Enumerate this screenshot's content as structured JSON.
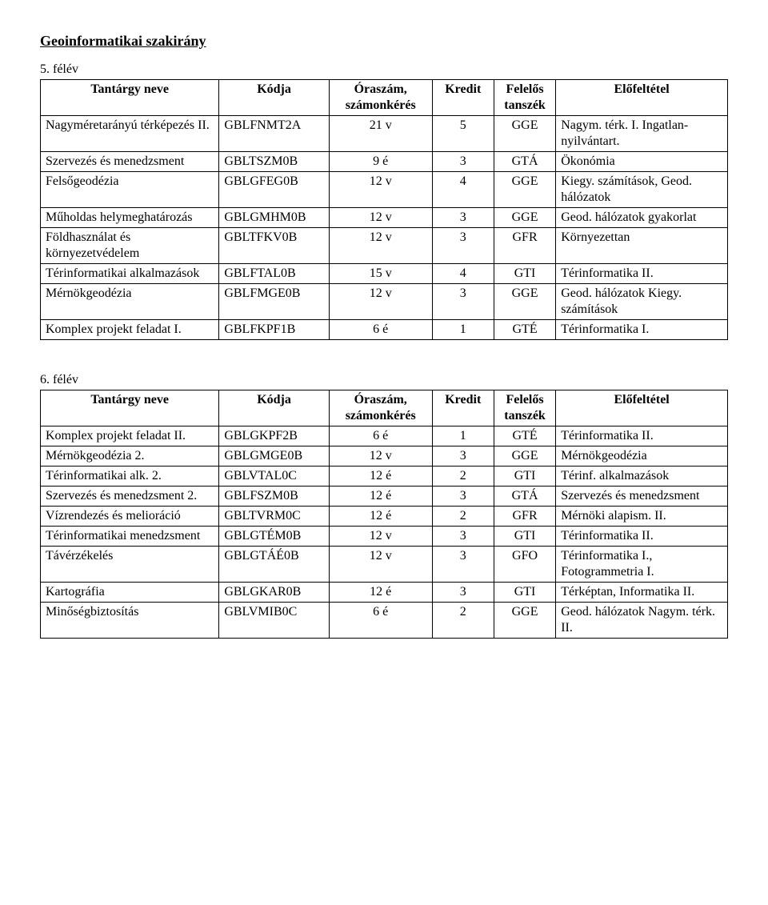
{
  "title": "Geoinformatikai szakirány",
  "columns": [
    "Tantárgy neve",
    "Kódja",
    "Óraszám, számonkérés",
    "Kredit",
    "Felelős tanszék",
    "Előfeltétel"
  ],
  "semesters": [
    {
      "label": "5. félév",
      "rows": [
        {
          "name": "Nagyméretarányú térképezés II.",
          "code": "GBLFNMT2A",
          "hours": "21 v",
          "credit": "5",
          "dept": "GGE",
          "prereq": "Nagym. térk. I. Ingatlan-nyilvántart."
        },
        {
          "name": "Szervezés és menedzsment",
          "code": "GBLTSZM0B",
          "hours": "9 é",
          "credit": "3",
          "dept": "GTÁ",
          "prereq": "Ökonómia"
        },
        {
          "name": "Felsőgeodézia",
          "code": "GBLGFEG0B",
          "hours": "12 v",
          "credit": "4",
          "dept": "GGE",
          "prereq": "Kiegy. számítások, Geod. hálózatok"
        },
        {
          "name": "Műholdas helymeghatározás",
          "code": "GBLGMHM0B",
          "hours": "12 v",
          "credit": "3",
          "dept": "GGE",
          "prereq": "Geod. hálózatok gyakorlat"
        },
        {
          "name": "Földhasználat és környezetvédelem",
          "code": "GBLTFKV0B",
          "hours": "12 v",
          "credit": "3",
          "dept": "GFR",
          "prereq": "Környezettan"
        },
        {
          "name": "Térinformatikai alkalmazások",
          "code": "GBLFTAL0B",
          "hours": "15 v",
          "credit": "4",
          "dept": "GTI",
          "prereq": "Térinformatika II."
        },
        {
          "name": "Mérnökgeodézia",
          "code": "GBLFMGE0B",
          "hours": "12 v",
          "credit": "3",
          "dept": "GGE",
          "prereq": "Geod. hálózatok Kiegy. számítások"
        },
        {
          "name": "Komplex projekt feladat I.",
          "code": "GBLFKPF1B",
          "hours": "6 é",
          "credit": "1",
          "dept": "GTÉ",
          "prereq": "Térinformatika I."
        }
      ]
    },
    {
      "label": "6. félév",
      "rows": [
        {
          "name": "Komplex projekt feladat II.",
          "code": "GBLGKPF2B",
          "hours": "6 é",
          "credit": "1",
          "dept": "GTÉ",
          "prereq": "Térinformatika II."
        },
        {
          "name": "Mérnökgeodézia 2.",
          "code": "GBLGMGE0B",
          "hours": "12 v",
          "credit": "3",
          "dept": "GGE",
          "prereq": "Mérnökgeodézia"
        },
        {
          "name": "Térinformatikai alk. 2.",
          "code": "GBLVTAL0C",
          "hours": "12 é",
          "credit": "2",
          "dept": "GTI",
          "prereq": "Térinf. alkalmazások"
        },
        {
          "name": "Szervezés és menedzsment 2.",
          "code": "GBLFSZM0B",
          "hours": "12 é",
          "credit": "3",
          "dept": "GTÁ",
          "prereq": "Szervezés és menedzsment"
        },
        {
          "name": "Vízrendezés és melioráció",
          "code": "GBLTVRM0C",
          "hours": "12 é",
          "credit": "2",
          "dept": "GFR",
          "prereq": "Mérnöki alapism. II."
        },
        {
          "name": "Térinformatikai menedzsment",
          "code": "GBLGTÉM0B",
          "hours": "12 v",
          "credit": "3",
          "dept": "GTI",
          "prereq": "Térinformatika II."
        },
        {
          "name": "Távérzékelés",
          "code": "GBLGTÁÉ0B",
          "hours": "12 v",
          "credit": "3",
          "dept": "GFO",
          "prereq": "Térinformatika I., Fotogrammetria I."
        },
        {
          "name": "Kartográfia",
          "code": "GBLGKAR0B",
          "hours": "12 é",
          "credit": "3",
          "dept": "GTI",
          "prereq": "Térképtan, Informatika II."
        },
        {
          "name": "Minőségbiztosítás",
          "code": "GBLVMIB0C",
          "hours": "6 é",
          "credit": "2",
          "dept": "GGE",
          "prereq": "Geod. hálózatok Nagym. térk. II."
        }
      ]
    }
  ]
}
